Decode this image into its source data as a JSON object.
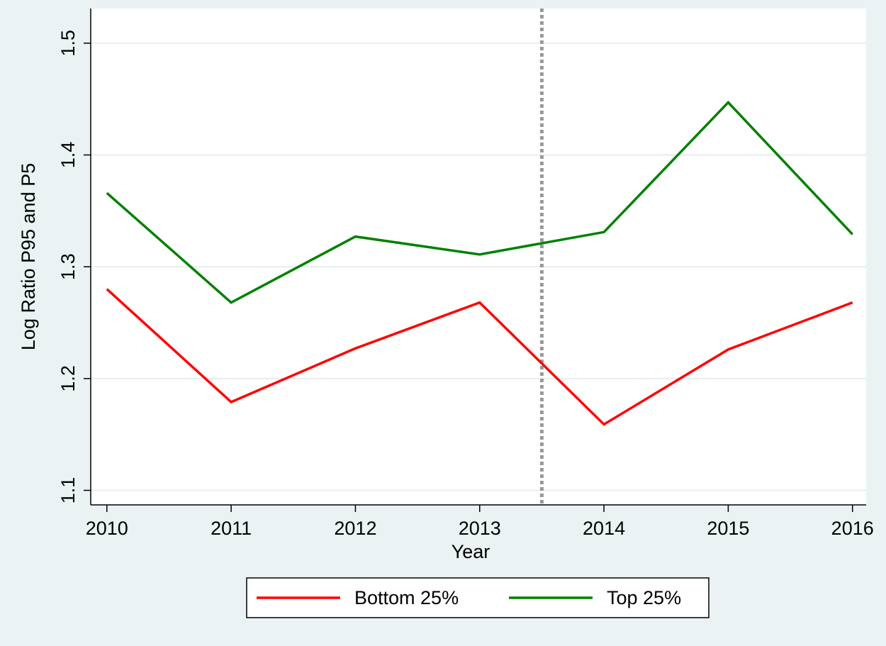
{
  "chart_data": {
    "type": "line",
    "x_label": "Year",
    "y_label": "Log Ratio P95 and P5",
    "x": [
      2010,
      2011,
      2012,
      2013,
      2014,
      2015,
      2016
    ],
    "series": [
      {
        "name": "Bottom 25%",
        "color": "#ff0000",
        "values": [
          1.28,
          1.179,
          1.227,
          1.268,
          1.159,
          1.226,
          1.268
        ]
      },
      {
        "name": "Top 25%",
        "color": "#008000",
        "values": [
          1.366,
          1.268,
          1.327,
          1.311,
          1.331,
          1.447,
          1.329
        ]
      }
    ],
    "xlim": [
      2009.87,
      2016.11
    ],
    "xticks": [
      2010,
      2011,
      2012,
      2013,
      2014,
      2015,
      2016
    ],
    "ylim": [
      1.087,
      1.531
    ],
    "yticks": [
      1.1,
      1.2,
      1.3,
      1.4,
      1.5
    ],
    "vline": 2013.5,
    "vline_color": "#999999",
    "grid": true,
    "legend": "bottom"
  }
}
